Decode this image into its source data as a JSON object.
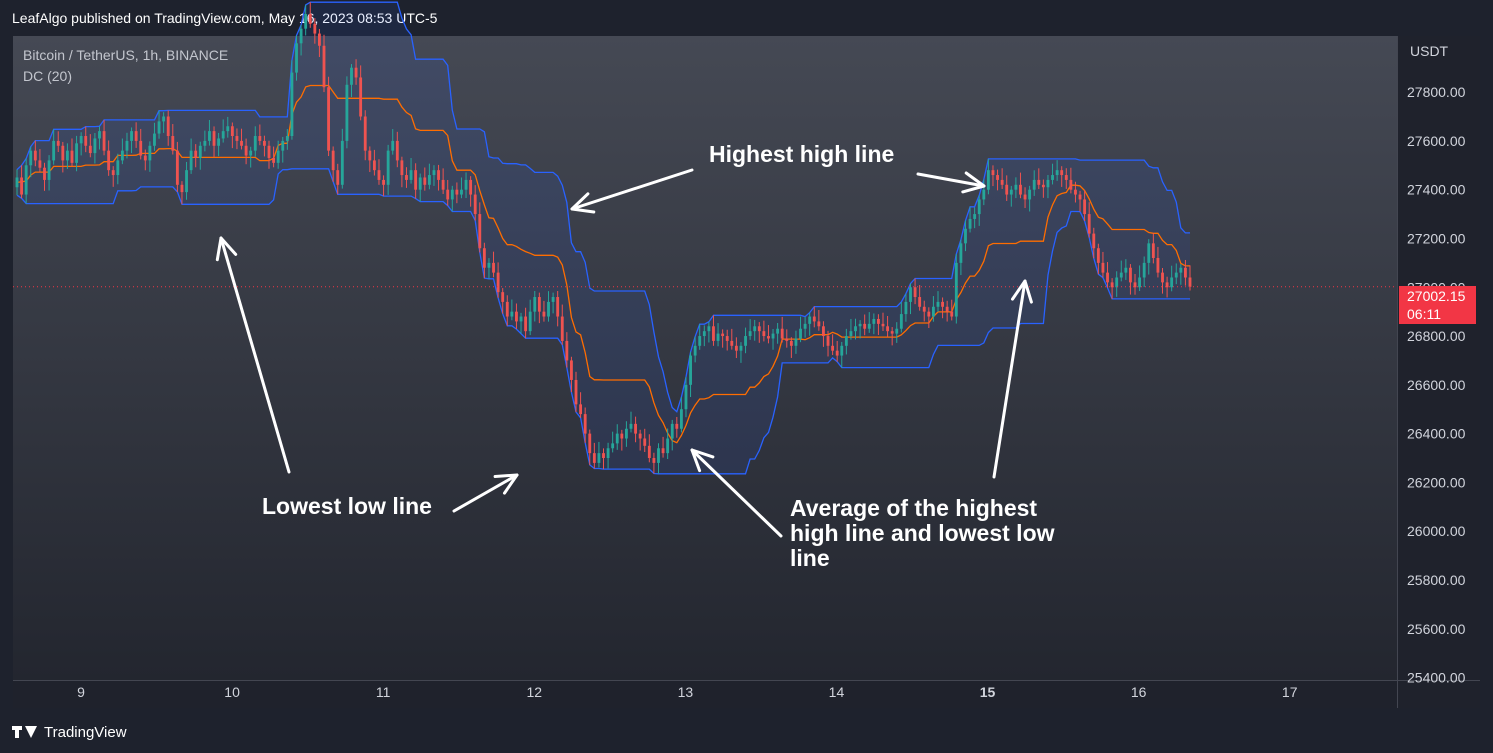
{
  "header": {
    "published": "LeafAlgo published on TradingView.com, May 16, 2023 08:53 UTC-5"
  },
  "legend": {
    "symbol": "Bitcoin / TetherUS, 1h, BINANCE",
    "indicator": "DC (20)"
  },
  "currency": "USDT",
  "last_price": {
    "value": "27002.15",
    "countdown": "06:11",
    "color": "#f23645"
  },
  "footer": {
    "brand": "TradingView"
  },
  "annotations": {
    "highest": "Highest high line",
    "lowest": "Lowest low line",
    "average_1": "Average of the highest",
    "average_2": "high line and lowest low",
    "average_3": "line"
  },
  "colors": {
    "up": "#26a69a",
    "down": "#ef5350",
    "upper": "#2962ff",
    "lower": "#2962ff",
    "basis": "#ff6d00",
    "fill": "#2962ff"
  },
  "chart_data": {
    "type": "candlestick",
    "y_ticks": [
      "27800.00",
      "27600.00",
      "27400.00",
      "27200.00",
      "27000.00",
      "26800.00",
      "26600.00",
      "26400.00",
      "26200.00",
      "26000.00",
      "25800.00",
      "25600.00",
      "25400.00"
    ],
    "y_tick_values": [
      27800,
      27600,
      27400,
      27200,
      27000,
      26800,
      26600,
      26400,
      26200,
      26000,
      25800,
      25600,
      25400
    ],
    "x_ticks": [
      "9",
      "10",
      "11",
      "12",
      "13",
      "14",
      "15",
      "16",
      "17"
    ],
    "x_tick_days": [
      9,
      10,
      11,
      12,
      13,
      14,
      15,
      16,
      17
    ],
    "ylim": [
      25390,
      28030
    ],
    "xlim_days": [
      8.55,
      17.71
    ],
    "donchian_period": 20,
    "series": [
      {
        "name": "close",
        "values": [
          27450,
          27380,
          27500,
          27560,
          27520,
          27490,
          27440,
          27520,
          27600,
          27580,
          27520,
          27560,
          27510,
          27590,
          27620,
          27580,
          27550,
          27610,
          27640,
          27560,
          27480,
          27460,
          27520,
          27560,
          27600,
          27640,
          27600,
          27540,
          27520,
          27580,
          27630,
          27680,
          27700,
          27620,
          27560,
          27420,
          27390,
          27480,
          27560,
          27530,
          27580,
          27600,
          27640,
          27580,
          27610,
          27640,
          27660,
          27620,
          27600,
          27580,
          27540,
          27560,
          27620,
          27600,
          27580,
          27530,
          27510,
          27560,
          27600,
          27620,
          27880,
          28000,
          28060,
          28120,
          28080,
          28040,
          27990,
          27820,
          27560,
          27480,
          27420,
          27600,
          27830,
          27900,
          27860,
          27700,
          27560,
          27520,
          27480,
          27440,
          27420,
          27560,
          27600,
          27520,
          27460,
          27440,
          27480,
          27400,
          27450,
          27420,
          27460,
          27480,
          27440,
          27400,
          27360,
          27400,
          27380,
          27400,
          27440,
          27380,
          27300,
          27160,
          27080,
          27100,
          27060,
          26980,
          26940,
          26880,
          26900,
          26860,
          26880,
          26820,
          26900,
          26960,
          26900,
          26880,
          26940,
          26960,
          26880,
          26780,
          26700,
          26620,
          26520,
          26480,
          26400,
          26320,
          26280,
          26320,
          26300,
          26340,
          26360,
          26400,
          26380,
          26420,
          26440,
          26400,
          26380,
          26350,
          26300,
          26280,
          26340,
          26320,
          26380,
          26440,
          26420,
          26500,
          26600,
          26720,
          26760,
          26800,
          26820,
          26840,
          26780,
          26810,
          26800,
          26780,
          26760,
          26740,
          26760,
          26800,
          26820,
          26840,
          26820,
          26800,
          26790,
          26810,
          26830,
          26790,
          26780,
          26760,
          26790,
          26830,
          26850,
          26880,
          26860,
          26840,
          26800,
          26760,
          26740,
          26720,
          26760,
          26800,
          26820,
          26840,
          26850,
          26830,
          26850,
          26870,
          26850,
          26840,
          26820,
          26810,
          26830,
          26890,
          26940,
          27000,
          26960,
          26920,
          26900,
          26880,
          26920,
          26940,
          26920,
          26900,
          26880,
          27100,
          27180,
          27240,
          27280,
          27300,
          27360,
          27400,
          27480,
          27460,
          27440,
          27420,
          27380,
          27400,
          27420,
          27380,
          27360,
          27400,
          27440,
          27420,
          27410,
          27440,
          27460,
          27480,
          27460,
          27440,
          27400,
          27380,
          27360,
          27300,
          27220,
          27160,
          27100,
          27060,
          27020,
          27000,
          27040,
          27060,
          27080,
          27020,
          27000,
          27040,
          27100,
          27180,
          27120,
          27060,
          27020,
          27000,
          27040,
          27060,
          27080,
          27040,
          27002
        ]
      }
    ]
  }
}
